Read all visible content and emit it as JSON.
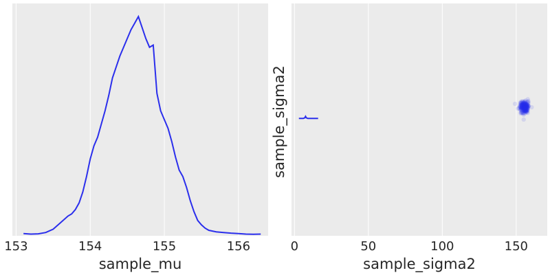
{
  "chart_data": [
    {
      "type": "line",
      "title": "",
      "xlabel": "sample_mu",
      "ylabel": "",
      "xlim": [
        152.95,
        156.4
      ],
      "ylim": [
        0,
        1.06
      ],
      "xticks": [
        153,
        154,
        155,
        156
      ],
      "xtick_labels": [
        "153",
        "154",
        "155",
        "156"
      ],
      "grid": true,
      "background": "#ebebeb",
      "line_color": "#2a2eec",
      "series": [
        {
          "x": [
            153.1,
            153.2,
            153.3,
            153.4,
            153.5,
            153.6,
            153.7,
            153.75,
            153.8,
            153.85,
            153.9,
            153.95,
            154.0,
            154.05,
            154.1,
            154.15,
            154.2,
            154.25,
            154.3,
            154.35,
            154.4,
            154.45,
            154.5,
            154.55,
            154.6,
            154.65,
            154.7,
            154.75,
            154.8,
            154.85,
            154.9,
            154.95,
            155.0,
            155.05,
            155.1,
            155.15,
            155.2,
            155.25,
            155.3,
            155.35,
            155.4,
            155.45,
            155.5,
            155.55,
            155.6,
            155.7,
            155.8,
            155.9,
            156.0,
            156.1,
            156.2,
            156.3
          ],
          "y": [
            0.01,
            0.008,
            0.009,
            0.015,
            0.03,
            0.06,
            0.09,
            0.1,
            0.12,
            0.15,
            0.2,
            0.27,
            0.35,
            0.41,
            0.45,
            0.51,
            0.57,
            0.64,
            0.72,
            0.77,
            0.82,
            0.86,
            0.9,
            0.94,
            0.97,
            1.0,
            0.95,
            0.9,
            0.86,
            0.87,
            0.65,
            0.57,
            0.53,
            0.49,
            0.43,
            0.36,
            0.3,
            0.27,
            0.22,
            0.16,
            0.11,
            0.07,
            0.05,
            0.035,
            0.025,
            0.018,
            0.015,
            0.012,
            0.01,
            0.008,
            0.007,
            0.008
          ]
        }
      ]
    },
    {
      "type": "scatter",
      "title": "",
      "xlabel": "sample_sigma2",
      "ylabel": "sample_sigma2",
      "xlim": [
        -2,
        171
      ],
      "ylim": [
        0,
        1
      ],
      "xticks": [
        0,
        50,
        100,
        150
      ],
      "xtick_labels": [
        "0",
        "50",
        "100",
        "150"
      ],
      "grid": true,
      "background": "#ebebeb",
      "marker_color": "#2a2eec",
      "cluster": {
        "center": [
          155.5,
          0.553
        ],
        "x_spread": 1.5,
        "y_spread": 0.012,
        "point_count": 260
      },
      "diagonal_kde": {
        "x": [
          3,
          6,
          7,
          7.5,
          8,
          9,
          12,
          16
        ],
        "y": [
          0.505,
          0.505,
          0.508,
          0.514,
          0.508,
          0.505,
          0.505,
          0.505
        ]
      }
    }
  ]
}
